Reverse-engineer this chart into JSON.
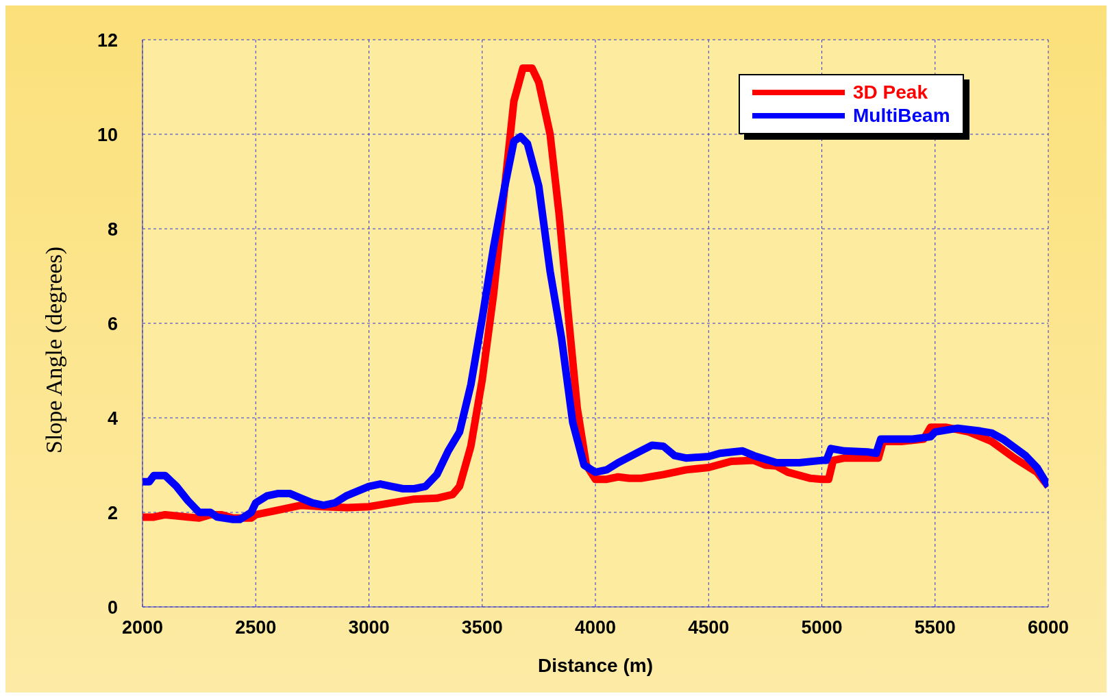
{
  "chart_data": {
    "type": "line",
    "xlabel": "Distance (m)",
    "ylabel": "Slope Angle (degrees)",
    "xlim": [
      2000,
      6000
    ],
    "xticks": [
      2000,
      2500,
      3000,
      3500,
      4000,
      4500,
      5000,
      5500,
      6000
    ],
    "ylim": [
      0,
      12
    ],
    "yticks": [
      0,
      2,
      4,
      6,
      8,
      10,
      12
    ],
    "grid": true,
    "legend": "top right",
    "marker": "none",
    "line_style": "solid",
    "series": [
      {
        "name": "3D Peak",
        "color": "#ff0000",
        "x": [
          2000,
          2050,
          2100,
          2200,
          2250,
          2300,
          2350,
          2400,
          2480,
          2500,
          2600,
          2700,
          2800,
          2900,
          3000,
          3100,
          3200,
          3300,
          3370,
          3400,
          3450,
          3500,
          3550,
          3600,
          3640,
          3680,
          3720,
          3750,
          3800,
          3840,
          3880,
          3920,
          3960,
          4000,
          4050,
          4100,
          4150,
          4200,
          4300,
          4400,
          4500,
          4600,
          4700,
          4750,
          4800,
          4850,
          4950,
          5000,
          5030,
          5050,
          5100,
          5150,
          5200,
          5250,
          5270,
          5350,
          5450,
          5480,
          5550,
          5650,
          5750,
          5850,
          5950,
          6000
        ],
        "values": [
          1.9,
          1.9,
          1.95,
          1.9,
          1.88,
          1.95,
          1.95,
          1.88,
          1.88,
          1.95,
          2.05,
          2.15,
          2.12,
          2.1,
          2.12,
          2.2,
          2.28,
          2.3,
          2.38,
          2.55,
          3.4,
          4.8,
          6.6,
          8.9,
          10.7,
          11.4,
          11.4,
          11.1,
          10,
          8.3,
          6.2,
          4.2,
          3,
          2.7,
          2.7,
          2.75,
          2.72,
          2.72,
          2.8,
          2.9,
          2.95,
          3.08,
          3.1,
          3,
          2.98,
          2.85,
          2.72,
          2.7,
          2.7,
          3.1,
          3.15,
          3.15,
          3.15,
          3.15,
          3.5,
          3.5,
          3.55,
          3.8,
          3.8,
          3.7,
          3.5,
          3.15,
          2.85,
          2.55
        ]
      },
      {
        "name": "MultiBeam",
        "color": "#0000ff",
        "x": [
          2000,
          2030,
          2050,
          2100,
          2150,
          2200,
          2250,
          2300,
          2330,
          2400,
          2430,
          2480,
          2500,
          2550,
          2600,
          2650,
          2700,
          2750,
          2800,
          2850,
          2900,
          3000,
          3050,
          3100,
          3150,
          3200,
          3250,
          3300,
          3350,
          3400,
          3450,
          3500,
          3550,
          3600,
          3640,
          3670,
          3700,
          3750,
          3800,
          3850,
          3900,
          3950,
          4000,
          4050,
          4100,
          4200,
          4250,
          4300,
          4350,
          4400,
          4500,
          4550,
          4650,
          4700,
          4800,
          4900,
          5000,
          5020,
          5040,
          5100,
          5200,
          5240,
          5260,
          5300,
          5400,
          5480,
          5500,
          5600,
          5700,
          5750,
          5800,
          5900,
          5950,
          6000
        ],
        "values": [
          2.65,
          2.65,
          2.78,
          2.78,
          2.55,
          2.25,
          2,
          2,
          1.9,
          1.85,
          1.85,
          2,
          2.2,
          2.35,
          2.4,
          2.4,
          2.3,
          2.2,
          2.15,
          2.2,
          2.35,
          2.55,
          2.6,
          2.55,
          2.5,
          2.5,
          2.55,
          2.8,
          3.3,
          3.7,
          4.7,
          6.1,
          7.6,
          8.9,
          9.85,
          9.95,
          9.8,
          8.9,
          7.1,
          5.7,
          3.9,
          3,
          2.85,
          2.9,
          3.05,
          3.3,
          3.42,
          3.4,
          3.2,
          3.15,
          3.18,
          3.25,
          3.3,
          3.2,
          3.05,
          3.05,
          3.1,
          3.1,
          3.35,
          3.3,
          3.28,
          3.25,
          3.55,
          3.55,
          3.55,
          3.6,
          3.7,
          3.78,
          3.72,
          3.68,
          3.55,
          3.2,
          2.95,
          2.55
        ]
      }
    ]
  }
}
